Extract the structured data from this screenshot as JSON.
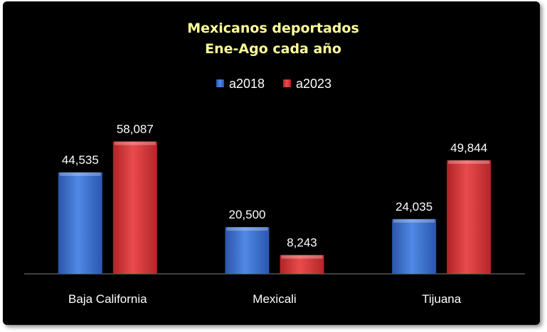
{
  "chart_data": {
    "type": "bar",
    "title": "Mexicanos deportados",
    "subtitle": "Ene-Ago cada año",
    "categories": [
      "Baja California",
      "Mexicali",
      "Tijuana"
    ],
    "series": [
      {
        "name": "a2018",
        "values": [
          44535,
          20500,
          24035
        ],
        "color": "#3f74cf",
        "labels": [
          "44,535",
          "20,500",
          "24,035"
        ]
      },
      {
        "name": "a2023",
        "values": [
          58087,
          8243,
          49844
        ],
        "color": "#d6393b",
        "labels": [
          "58,087",
          "8,243",
          "49,844"
        ]
      }
    ],
    "ylim": [
      0,
      70000
    ],
    "grid": false,
    "legend_position": "top",
    "background": "#000000",
    "title_color": "#ffff99"
  }
}
